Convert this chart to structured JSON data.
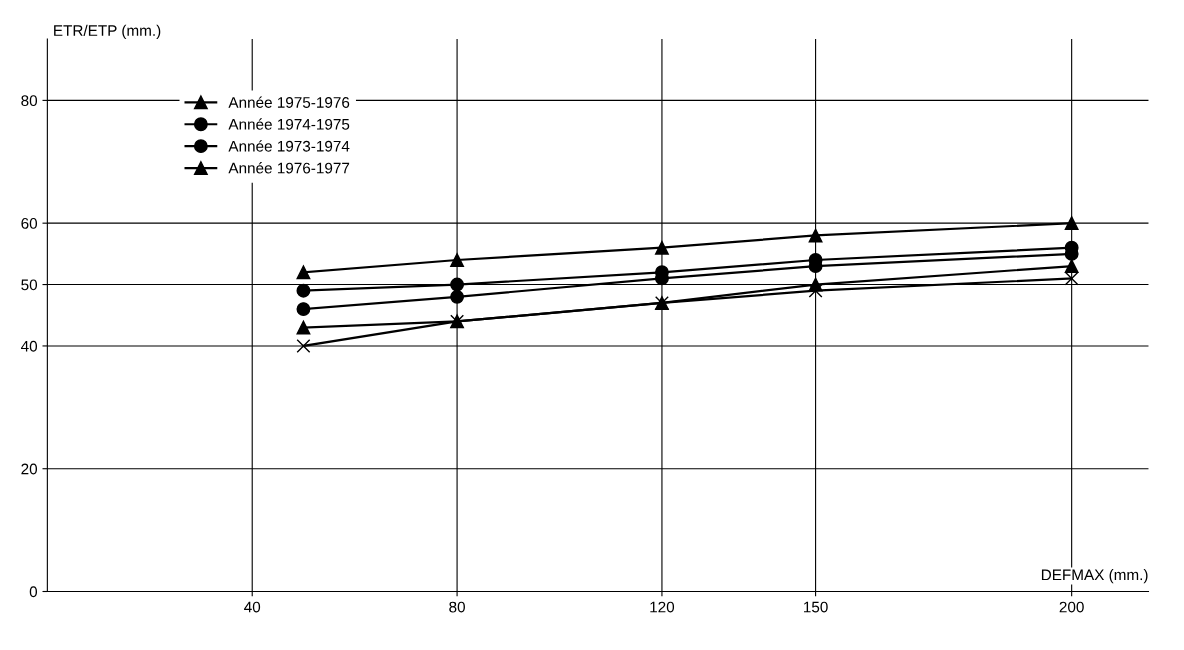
{
  "chart_data": {
    "type": "line",
    "xlabel": "DEFMAX (mm.)",
    "ylabel": "ETR/ETP (mm.)",
    "x": [
      50,
      80,
      120,
      150,
      200
    ],
    "series": [
      {
        "name": "Année 1975-1976",
        "color": "#000000",
        "marker": "triangle",
        "values": [
          52,
          54,
          56,
          58,
          60
        ]
      },
      {
        "name": "Année 1974-1975",
        "color": "#000000",
        "marker": "circle",
        "values": [
          49,
          50,
          52,
          54,
          56
        ]
      },
      {
        "name": "Année 1973-1974",
        "color": "#000000",
        "marker": "circle",
        "values": [
          46,
          48,
          51,
          53,
          55
        ]
      },
      {
        "name": "Année 1976-1977",
        "color": "#000000",
        "marker": "triangle",
        "values": [
          43,
          44,
          47,
          50,
          53
        ]
      },
      {
        "color": "#000000",
        "marker": "cross",
        "values": [
          40,
          44,
          47,
          49,
          51
        ]
      }
    ],
    "xlim": [
      0,
      215
    ],
    "xticks": [
      40,
      80,
      120,
      150,
      200
    ],
    "ylim": [
      0,
      90
    ],
    "yticks": [
      0,
      20,
      40,
      50,
      60,
      80
    ],
    "grid": true,
    "legend": "top left",
    "line_style": "solid"
  }
}
